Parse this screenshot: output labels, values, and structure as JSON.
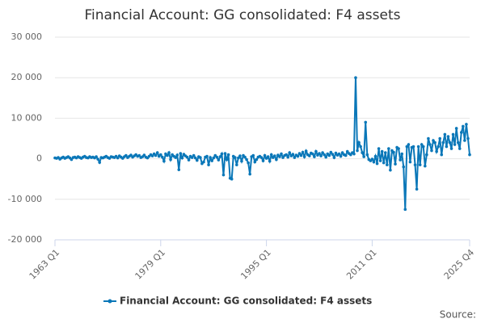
{
  "chart_data": {
    "type": "line",
    "title": "Financial Account: GG consolidated: F4 assets",
    "source": "Source:",
    "categories": [
      "1963 Q1",
      null,
      null,
      null,
      null,
      null,
      null,
      null,
      null,
      null,
      null,
      null,
      null,
      null,
      null,
      null,
      null,
      null,
      null,
      null,
      null,
      null,
      null,
      null,
      null,
      null,
      null,
      null,
      null,
      null,
      null,
      null,
      null,
      null,
      null,
      null,
      null,
      null,
      null,
      null,
      null,
      null,
      null,
      null,
      null,
      null,
      null,
      null,
      null,
      null,
      null,
      null,
      null,
      null,
      null,
      null,
      null,
      null,
      null,
      null,
      null,
      null,
      null,
      null,
      "1979 Q1",
      null,
      null,
      null,
      null,
      null,
      null,
      null,
      null,
      null,
      null,
      null,
      null,
      null,
      null,
      null,
      null,
      null,
      null,
      null,
      null,
      null,
      null,
      null,
      null,
      null,
      null,
      null,
      null,
      null,
      null,
      null,
      null,
      null,
      null,
      null,
      null,
      null,
      null,
      null,
      null,
      null,
      null,
      null,
      null,
      null,
      null,
      null,
      null,
      null,
      null,
      null,
      null,
      null,
      null,
      null,
      null,
      null,
      null,
      null,
      null,
      null,
      null,
      null,
      "1995 Q1",
      null,
      null,
      null,
      null,
      null,
      null,
      null,
      null,
      null,
      null,
      null,
      null,
      null,
      null,
      null,
      null,
      null,
      null,
      null,
      null,
      null,
      null,
      null,
      null,
      null,
      null,
      null,
      null,
      null,
      null,
      null,
      null,
      null,
      null,
      null,
      null,
      null,
      null,
      null,
      null,
      null,
      null,
      null,
      null,
      null,
      null,
      null,
      null,
      null,
      null,
      null,
      null,
      null,
      null,
      null,
      null,
      null,
      null,
      null,
      null,
      null,
      null,
      null,
      "2011 Q1",
      null,
      null,
      null,
      null,
      null,
      null,
      null,
      null,
      null,
      null,
      null,
      null,
      null,
      null,
      null,
      null,
      null,
      null,
      null,
      null,
      null,
      null,
      null,
      null,
      null,
      null,
      null,
      null,
      null,
      null,
      null,
      null,
      null,
      null,
      null,
      null,
      null,
      null,
      null,
      null,
      null,
      null,
      null,
      null,
      null,
      null,
      null,
      null,
      null,
      null,
      null,
      null,
      null,
      null,
      null,
      null,
      null,
      null,
      "2025 Q4"
    ],
    "series": [
      {
        "name": "Financial Account: GG consolidated: F4 assets",
        "color": "#0a77b8",
        "values": [
          200,
          100,
          300,
          -100,
          200,
          400,
          100,
          300,
          500,
          200,
          -200,
          300,
          400,
          200,
          500,
          300,
          100,
          400,
          600,
          300,
          200,
          500,
          300,
          400,
          200,
          500,
          -100,
          -900,
          300,
          200,
          400,
          600,
          300,
          100,
          500,
          400,
          300,
          600,
          200,
          700,
          400,
          100,
          500,
          800,
          300,
          600,
          900,
          400,
          700,
          1000,
          600,
          800,
          300,
          500,
          900,
          400,
          200,
          600,
          1000,
          700,
          1200,
          800,
          1500,
          600,
          1000,
          400,
          -600,
          1200,
          800,
          1500,
          -200,
          1000,
          600,
          300,
          900,
          -2700,
          1300,
          200,
          1100,
          700,
          400,
          -300,
          600,
          300,
          800,
          200,
          -400,
          500,
          300,
          -1200,
          -800,
          400,
          600,
          -1500,
          300,
          -500,
          200,
          800,
          400,
          -300,
          500,
          1200,
          -4000,
          1300,
          -200,
          1000,
          -4800,
          -5000,
          600,
          300,
          -1500,
          200,
          700,
          -600,
          800,
          400,
          -200,
          -1000,
          -3800,
          500,
          800,
          -800,
          -200,
          400,
          600,
          300,
          -500,
          800,
          100,
          500,
          -600,
          1000,
          300,
          700,
          -200,
          900,
          500,
          1200,
          300,
          800,
          1000,
          400,
          1500,
          700,
          1100,
          300,
          900,
          600,
          1300,
          800,
          1600,
          500,
          1900,
          1000,
          700,
          1400,
          1200,
          500,
          1800,
          900,
          1300,
          700,
          1500,
          1000,
          400,
          1200,
          800,
          1600,
          1100,
          300,
          1400,
          900,
          1200,
          600,
          1500,
          1000,
          800,
          1800,
          1300,
          1000,
          1500,
          1200,
          20000,
          2000,
          4000,
          3000,
          1500,
          500,
          9000,
          1000,
          -200,
          -500,
          -100,
          -800,
          600,
          -1200,
          2500,
          -500,
          1800,
          -1000,
          1500,
          -1500,
          2500,
          -2800,
          2000,
          1600,
          -1300,
          2800,
          2500,
          -300,
          1200,
          -2000,
          -12500,
          3000,
          3500,
          -800,
          2800,
          3000,
          -1500,
          -7500,
          3000,
          -1500,
          3500,
          3000,
          -1800,
          1000,
          5000,
          3500,
          2000,
          4500,
          4000,
          1800,
          3000,
          5000,
          1000,
          4000,
          6000,
          3000,
          5500,
          4000,
          2500,
          6000,
          3500,
          7500,
          4000,
          2500,
          6500,
          8000,
          4500,
          8500,
          5000,
          1000
        ]
      }
    ],
    "ylim": [
      -20000,
      30000
    ],
    "yticks": [
      {
        "value": -20000,
        "label": "-20 000"
      },
      {
        "value": -10000,
        "label": "-10 000"
      },
      0,
      {
        "value": 10000,
        "label": "10 000"
      },
      {
        "value": 20000,
        "label": "20 000"
      },
      {
        "value": 30000,
        "label": "30 000"
      }
    ],
    "grid": true
  }
}
